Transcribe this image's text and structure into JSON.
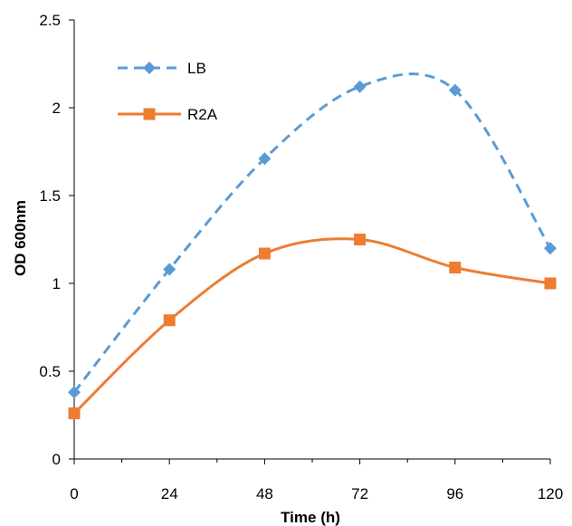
{
  "chart_data": {
    "type": "line",
    "title": "",
    "xlabel": "Time (h)",
    "ylabel": "OD 600nm",
    "x": [
      0,
      24,
      48,
      72,
      96,
      120
    ],
    "x_tick_labels": [
      "0",
      "24",
      "48",
      "72",
      "96",
      "120"
    ],
    "y_tick_labels": [
      "0",
      "0.5",
      "1",
      "1.5",
      "2",
      "2.5"
    ],
    "y_ticks": [
      0,
      0.5,
      1,
      1.5,
      2,
      2.5
    ],
    "xlim": [
      0,
      120
    ],
    "ylim": [
      0,
      2.5
    ],
    "grid": false,
    "legend_position": "top-left",
    "series": [
      {
        "name": "LB",
        "values": [
          0.38,
          1.08,
          1.71,
          2.12,
          2.1,
          1.2
        ],
        "color": "#5B9BD5",
        "line_style": "dashed",
        "marker": "diamond"
      },
      {
        "name": "R2A",
        "values": [
          0.26,
          0.79,
          1.17,
          1.25,
          1.09,
          1.0
        ],
        "color": "#ED7D31",
        "line_style": "solid",
        "marker": "square"
      }
    ]
  }
}
